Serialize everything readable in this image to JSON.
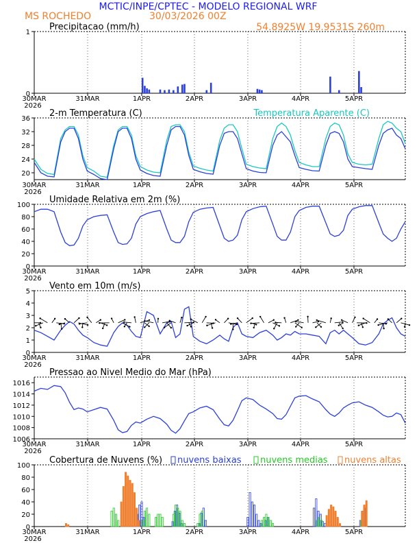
{
  "header": {
    "main_title": "MCTIC/INPE/CPTEC - MODELO REGIONAL WRF",
    "location": "MS ROCHEDO",
    "run_date": "30/03/2026 00Z",
    "coords": "54.8925W  19.9531S  260m"
  },
  "colors": {
    "title_blue": "#1a1aff",
    "orange": "#f08030",
    "series_blue": "#2a3fdc",
    "cyan": "#18c8c0",
    "green": "#22cc22",
    "black": "#000000"
  },
  "x_axis": {
    "labels": [
      "30MAR",
      "31MAR",
      "1APR",
      "2APR",
      "3APR",
      "4APR",
      "5APR"
    ],
    "year_label": "2026",
    "hours_total": 168
  },
  "chart_data": [
    {
      "id": "precip",
      "type": "bar",
      "title": "Precipitacao (mm/h)",
      "ylim": [
        0,
        1
      ],
      "yticks": [
        0,
        1
      ],
      "hours": [
        49,
        50,
        51,
        52,
        57,
        59,
        61,
        63,
        65,
        67,
        68,
        78,
        80,
        101,
        102,
        103,
        134,
        138,
        147,
        148
      ],
      "values": [
        0.25,
        0.12,
        0.08,
        0.06,
        0.06,
        0.05,
        0.06,
        0.05,
        0.11,
        0.14,
        0.15,
        0.05,
        0.17,
        0.07,
        0.06,
        0.05,
        0.27,
        0.05,
        0.36,
        0.1
      ]
    },
    {
      "id": "temp",
      "type": "line",
      "title": "2-m Temperatura (C)",
      "title2": "Temperatura Aparente (C)",
      "ylim": [
        18,
        36
      ],
      "yticks": [
        20,
        24,
        28,
        32,
        36
      ],
      "series": [
        {
          "name": "Temperatura",
          "x": [
            0,
            3,
            6,
            9,
            12,
            14,
            16,
            18,
            20,
            22,
            24,
            27,
            30,
            33,
            36,
            38,
            40,
            42,
            44,
            46,
            48,
            51,
            54,
            57,
            60,
            62,
            64,
            66,
            68,
            70,
            72,
            75,
            78,
            81,
            84,
            86,
            88,
            90,
            92,
            94,
            96,
            99,
            102,
            105,
            108,
            110,
            112,
            114,
            116,
            118,
            120,
            123,
            126,
            129,
            132,
            134,
            136,
            138,
            140,
            142,
            144,
            147,
            150,
            153,
            156,
            158,
            160,
            162,
            164,
            166,
            168
          ],
          "values": [
            23,
            20,
            19,
            18.8,
            29,
            32,
            33,
            33,
            30,
            24,
            20.5,
            19.5,
            18.3,
            18,
            27,
            32,
            33,
            33,
            30,
            24,
            20.8,
            19.8,
            19.2,
            19,
            28,
            32.5,
            33.5,
            33.5,
            31,
            25,
            21,
            20.3,
            19.8,
            19.6,
            28,
            31.5,
            32,
            32,
            30,
            25.5,
            21.2,
            20.5,
            20.1,
            20,
            28,
            31,
            32,
            30.5,
            29,
            25,
            21.5,
            21,
            20.6,
            20.5,
            28,
            31.5,
            32,
            31.5,
            29,
            24,
            21.8,
            21.5,
            21.2,
            21,
            28,
            31.5,
            32.5,
            33,
            31,
            30,
            27
          ]
        },
        {
          "name": "Temperatura Aparente",
          "x": [
            0,
            3,
            6,
            9,
            12,
            14,
            16,
            18,
            20,
            22,
            24,
            27,
            30,
            33,
            36,
            38,
            40,
            42,
            44,
            46,
            48,
            51,
            54,
            57,
            60,
            62,
            64,
            66,
            68,
            70,
            72,
            75,
            78,
            81,
            84,
            86,
            88,
            90,
            92,
            94,
            96,
            99,
            102,
            105,
            108,
            110,
            112,
            114,
            116,
            118,
            120,
            123,
            126,
            129,
            132,
            134,
            136,
            138,
            140,
            142,
            144,
            147,
            150,
            153,
            156,
            158,
            160,
            162,
            164,
            166,
            168
          ],
          "values": [
            24,
            21,
            19.8,
            19.5,
            30,
            32.5,
            33.5,
            33.5,
            31,
            25,
            21.5,
            20.5,
            19,
            18.7,
            28,
            32.5,
            33.5,
            33.5,
            31,
            25,
            21.8,
            20.8,
            20.2,
            20,
            29.5,
            33.5,
            34,
            34,
            32,
            26,
            22,
            21.3,
            20.8,
            20.5,
            29.5,
            33,
            34,
            34,
            32,
            27,
            22.5,
            21.8,
            21.4,
            21.2,
            30,
            33.5,
            34.5,
            33.5,
            31,
            26.5,
            23,
            22.3,
            21.8,
            21.8,
            30,
            33.5,
            34.5,
            34,
            31,
            25.5,
            23,
            22.5,
            22.3,
            22.5,
            30,
            34,
            35,
            34.5,
            33,
            32,
            28.5
          ]
        }
      ]
    },
    {
      "id": "rh",
      "type": "line",
      "title": "Umidade Relativa em 2m (%)",
      "ylim": [
        0,
        100
      ],
      "yticks": [
        0,
        20,
        40,
        60,
        80,
        100
      ],
      "series": [
        {
          "name": "Umidade Relativa",
          "x": [
            0,
            3,
            6,
            9,
            12,
            14,
            16,
            18,
            20,
            22,
            24,
            27,
            30,
            33,
            36,
            38,
            40,
            42,
            44,
            46,
            48,
            51,
            54,
            57,
            60,
            62,
            64,
            66,
            68,
            70,
            72,
            75,
            78,
            81,
            84,
            86,
            88,
            90,
            92,
            94,
            96,
            99,
            102,
            105,
            108,
            110,
            112,
            114,
            116,
            118,
            120,
            123,
            126,
            129,
            132,
            134,
            136,
            138,
            140,
            142,
            144,
            147,
            150,
            153,
            156,
            158,
            160,
            162,
            164,
            166,
            168
          ],
          "values": [
            88,
            92,
            92,
            88,
            55,
            38,
            33,
            34,
            45,
            65,
            75,
            80,
            82,
            83,
            55,
            38,
            35,
            36,
            45,
            68,
            80,
            85,
            88,
            90,
            60,
            42,
            38,
            38,
            48,
            72,
            87,
            92,
            94,
            95,
            65,
            45,
            40,
            42,
            50,
            75,
            88,
            93,
            96,
            97,
            68,
            48,
            42,
            42,
            55,
            80,
            90,
            95,
            97,
            97,
            70,
            52,
            48,
            50,
            58,
            82,
            92,
            96,
            98,
            98,
            70,
            52,
            45,
            40,
            45,
            60,
            72
          ]
        }
      ]
    },
    {
      "id": "wind",
      "type": "line",
      "title": "Vento em 10m (m/s)",
      "ylim": [
        0,
        5
      ],
      "yticks": [
        0,
        1,
        2,
        3,
        4,
        5
      ],
      "barbs_note": "direction arrows drawn along y = 2.4",
      "series": [
        {
          "name": "Vento",
          "x": [
            0,
            3,
            6,
            9,
            12,
            14,
            16,
            18,
            20,
            22,
            24,
            27,
            30,
            33,
            36,
            38,
            40,
            42,
            44,
            46,
            48,
            51,
            54,
            57,
            60,
            62,
            64,
            66,
            68,
            70,
            72,
            75,
            78,
            81,
            84,
            86,
            88,
            90,
            92,
            94,
            96,
            99,
            102,
            105,
            108,
            110,
            112,
            114,
            116,
            118,
            120,
            123,
            126,
            129,
            132,
            134,
            136,
            138,
            140,
            142,
            144,
            147,
            150,
            153,
            156,
            158,
            160,
            162,
            164,
            166,
            168
          ],
          "values": [
            1.8,
            1.6,
            1.3,
            1.0,
            1.8,
            2.2,
            2.5,
            2.3,
            1.8,
            1.4,
            1.2,
            0.8,
            0.6,
            0.5,
            1.6,
            2.1,
            2.4,
            2.2,
            1.7,
            1.3,
            1.2,
            3.3,
            3.0,
            1.5,
            2.4,
            2.5,
            1.2,
            1.5,
            3.5,
            3.7,
            1.3,
            0.9,
            0.7,
            1.0,
            1.4,
            1.1,
            0.9,
            2.0,
            2.4,
            1.5,
            1.3,
            1.2,
            1.6,
            1.8,
            1.4,
            1.0,
            1.2,
            1.5,
            1.4,
            1.7,
            1.5,
            1.5,
            1.4,
            1.3,
            0.7,
            1.6,
            1.8,
            1.5,
            1.8,
            1.5,
            1.2,
            0.7,
            0.6,
            0.8,
            1.5,
            2.3,
            2.6,
            2.8,
            2.0,
            1.5,
            1.3
          ]
        }
      ]
    },
    {
      "id": "pressure",
      "type": "line",
      "title": "Pressao ao Nivel Medio do Mar (hPa)",
      "ylim": [
        1006,
        1017
      ],
      "yticks": [
        1006,
        1008,
        1010,
        1012,
        1014,
        1016
      ],
      "series": [
        {
          "name": "Pressao",
          "x": [
            0,
            3,
            6,
            9,
            12,
            14,
            16,
            18,
            20,
            22,
            24,
            27,
            30,
            33,
            36,
            38,
            40,
            42,
            44,
            46,
            48,
            51,
            54,
            57,
            60,
            62,
            64,
            66,
            68,
            70,
            72,
            75,
            78,
            81,
            84,
            86,
            88,
            90,
            92,
            94,
            96,
            99,
            102,
            105,
            108,
            110,
            112,
            114,
            116,
            118,
            120,
            123,
            126,
            129,
            132,
            134,
            136,
            138,
            140,
            142,
            144,
            147,
            150,
            153,
            156,
            158,
            160,
            162,
            164,
            166,
            168
          ],
          "values": [
            1014.5,
            1015,
            1014.8,
            1015.5,
            1015.3,
            1014.2,
            1012.5,
            1011.2,
            1011.5,
            1011.3,
            1010.8,
            1011.2,
            1011.6,
            1011.3,
            1009.3,
            1007.6,
            1007.1,
            1007.3,
            1008.4,
            1009.0,
            1008.8,
            1009.5,
            1010.0,
            1009.6,
            1008.6,
            1007.5,
            1007.0,
            1007.8,
            1009.2,
            1010.5,
            1010.8,
            1011.5,
            1011.8,
            1011.2,
            1009.5,
            1008.5,
            1008.3,
            1009.3,
            1011.0,
            1012.8,
            1013.3,
            1013.0,
            1012.0,
            1011.3,
            1010.5,
            1009.6,
            1009.5,
            1010.3,
            1011.8,
            1013.3,
            1013.6,
            1013.7,
            1013.1,
            1012.6,
            1011.2,
            1010.4,
            1010.0,
            1010.6,
            1011.5,
            1012.0,
            1012.4,
            1012.6,
            1012.0,
            1011.6,
            1010.8,
            1010.2,
            1009.9,
            1010.0,
            1010.6,
            1010.3,
            1008.8
          ]
        }
      ]
    },
    {
      "id": "clouds",
      "type": "bar",
      "title": "Cobertura de Nuvens (%)",
      "legend": [
        "nuvens baixas",
        "nuvens medias",
        "nuvens altas"
      ],
      "ylim": [
        0,
        100
      ],
      "yticks": [
        0,
        20,
        40,
        60,
        80,
        100
      ],
      "series": [
        {
          "name": "nuvens baixas",
          "hours": [
            47,
            48,
            49,
            50,
            63,
            64,
            65,
            66,
            67,
            75,
            76,
            77,
            78,
            97,
            98,
            99,
            100,
            101,
            102,
            103,
            105,
            106,
            127,
            128,
            129,
            130,
            131,
            132,
            148,
            149,
            150
          ],
          "values": [
            20,
            35,
            40,
            15,
            8,
            25,
            35,
            22,
            5,
            5,
            22,
            30,
            10,
            15,
            55,
            40,
            35,
            20,
            10,
            5,
            10,
            15,
            30,
            45,
            25,
            20,
            8,
            5,
            10,
            25,
            30
          ]
        },
        {
          "name": "nuvens medias",
          "hours": [
            35,
            36,
            37,
            38,
            49,
            50,
            51,
            52,
            55,
            56,
            57,
            58,
            63,
            64,
            65,
            66,
            67,
            68,
            74,
            75,
            76,
            103,
            104,
            105,
            106,
            107,
            108,
            128,
            129,
            130,
            148,
            149,
            150
          ],
          "values": [
            25,
            30,
            20,
            10,
            10,
            25,
            30,
            20,
            15,
            20,
            20,
            15,
            20,
            35,
            30,
            25,
            10,
            5,
            5,
            20,
            25,
            10,
            15,
            20,
            15,
            10,
            5,
            10,
            15,
            10,
            10,
            20,
            15
          ]
        },
        {
          "name": "nuvens altas",
          "hours": [
            14,
            15,
            39,
            40,
            41,
            42,
            43,
            44,
            45,
            46,
            47,
            132,
            133,
            134,
            135,
            136,
            137,
            138,
            148,
            149,
            150
          ],
          "values": [
            5,
            3,
            40,
            65,
            88,
            82,
            75,
            70,
            55,
            30,
            10,
            18,
            28,
            35,
            32,
            25,
            15,
            5,
            25,
            35,
            42
          ]
        }
      ]
    }
  ]
}
